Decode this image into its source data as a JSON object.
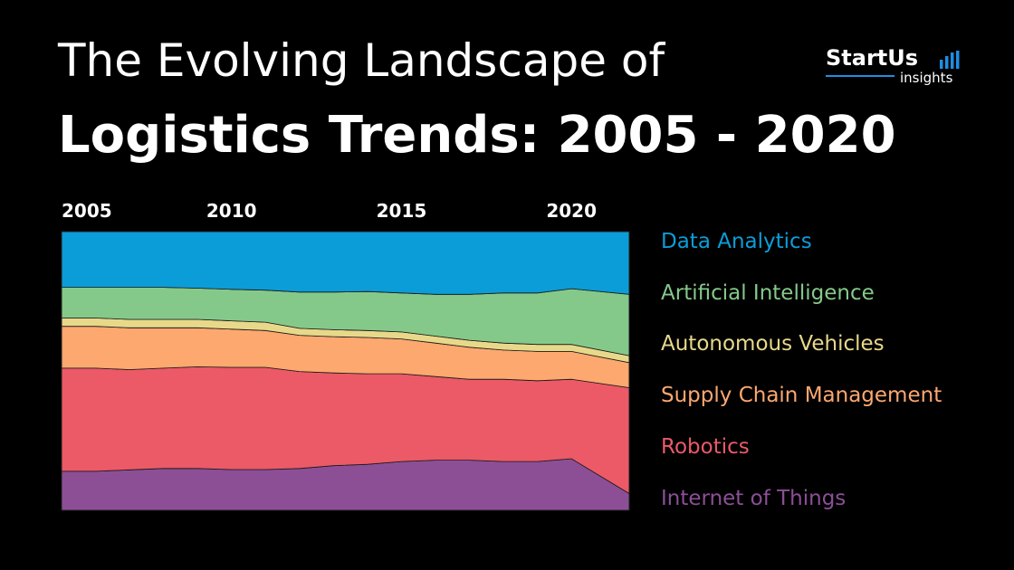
{
  "header": {
    "title_line1": "The Evolving Landscape of",
    "title_line2": "Logistics Trends: 2005 - 2020"
  },
  "logo": {
    "name": "StartUs",
    "sub": "insights",
    "accent_color": "#1e8ee0"
  },
  "chart_data": {
    "type": "area",
    "stacked": true,
    "normalized": true,
    "x": [
      2005,
      2006,
      2007,
      2008,
      2009,
      2010,
      2011,
      2012,
      2013,
      2014,
      2015,
      2016,
      2017,
      2018,
      2019,
      2020,
      2021
    ],
    "x_ticks": [
      "2005",
      "2010",
      "2015",
      "2020"
    ],
    "x_tick_values": [
      2005,
      2010,
      2015,
      2020
    ],
    "x_axis_position": "top",
    "xlim": [
      2005,
      2021.7
    ],
    "ylim": [
      0,
      100
    ],
    "grid": false,
    "legend_position": "right",
    "series": [
      {
        "name": "Internet of Things",
        "color": "#8c4f96",
        "values": [
          14,
          14,
          14.5,
          15,
          15,
          14.6,
          14.6,
          15,
          16,
          16.5,
          17.5,
          18,
          18,
          17.5,
          17.5,
          18.5,
          6
        ]
      },
      {
        "name": "Robotics",
        "color": "#eb5a66",
        "values": [
          37,
          37,
          36,
          36,
          36.5,
          36.7,
          36.7,
          34.8,
          33.3,
          32.5,
          31.5,
          30,
          29,
          29.5,
          29,
          28.5,
          38
        ]
      },
      {
        "name": "Supply Chain Management",
        "color": "#fca86f",
        "values": [
          15,
          15,
          15,
          14.5,
          14,
          13.7,
          13.2,
          13,
          13,
          13,
          12.5,
          12,
          11.5,
          10.5,
          10.5,
          10,
          9
        ]
      },
      {
        "name": "Autonomous Vehicles",
        "color": "#e8d98a",
        "values": [
          3,
          3,
          3,
          3,
          3,
          3,
          3,
          2.5,
          2.5,
          2.5,
          2.5,
          2.5,
          2.5,
          2.5,
          2.5,
          2.5,
          2.5
        ]
      },
      {
        "name": "Artificial Intelligence",
        "color": "#85c98a",
        "values": [
          11,
          11,
          11.5,
          11.5,
          11.2,
          11.3,
          11.5,
          13,
          13.5,
          14,
          14,
          15,
          16.5,
          18,
          18.5,
          20,
          22
        ]
      },
      {
        "name": "Data Analytics",
        "color": "#0b9dd8",
        "values": [
          20,
          20,
          20,
          20,
          20.3,
          20.7,
          21,
          21.7,
          21.7,
          21.5,
          22,
          22.5,
          22.5,
          22,
          22,
          20.5,
          22.5
        ]
      }
    ]
  }
}
